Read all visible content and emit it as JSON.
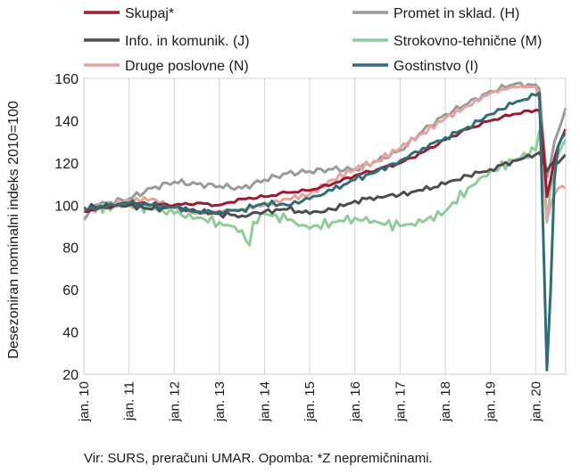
{
  "chart_data": {
    "type": "line",
    "title": "",
    "xlabel": "",
    "ylabel": "Desezoniran nominalni indeks 2010=100",
    "ylim": [
      20,
      160
    ],
    "yticks": [
      20,
      40,
      60,
      80,
      100,
      120,
      140,
      160
    ],
    "x_start": "2010-01",
    "x_end": "2020-09",
    "xtick_labels": [
      "jan. 10",
      "jan. 11",
      "jan. 12",
      "jan. 13",
      "jan. 14",
      "jan. 15",
      "jan. 16",
      "jan. 17",
      "jan. 18",
      "jan. 19",
      "jan. 20"
    ],
    "grid": "vertical",
    "legend_position": "top",
    "series": [
      {
        "name": "Skupaj*",
        "color": "#9b1b30",
        "width": 3,
        "anchors": [
          [
            "2010-01",
            97
          ],
          [
            "2011-01",
            101
          ],
          [
            "2012-01",
            100
          ],
          [
            "2012-07",
            101
          ],
          [
            "2013-01",
            100
          ],
          [
            "2013-07",
            103
          ],
          [
            "2014-01",
            104
          ],
          [
            "2014-07",
            106
          ],
          [
            "2015-01",
            107
          ],
          [
            "2015-07",
            110
          ],
          [
            "2016-01",
            114
          ],
          [
            "2016-07",
            117
          ],
          [
            "2017-01",
            120
          ],
          [
            "2017-07",
            125
          ],
          [
            "2018-01",
            131
          ],
          [
            "2018-07",
            136
          ],
          [
            "2019-01",
            140
          ],
          [
            "2019-07",
            143
          ],
          [
            "2020-01",
            145
          ],
          [
            "2020-02",
            145
          ],
          [
            "2020-03",
            128
          ],
          [
            "2020-04",
            104
          ],
          [
            "2020-05",
            112
          ],
          [
            "2020-06",
            122
          ],
          [
            "2020-07",
            128
          ],
          [
            "2020-08",
            132
          ],
          [
            "2020-09",
            136
          ]
        ]
      },
      {
        "name": "Promet in sklad. (H)",
        "color": "#9a9a9a",
        "width": 3,
        "anchors": [
          [
            "2010-01",
            93
          ],
          [
            "2010-04",
            100
          ],
          [
            "2011-01",
            103
          ],
          [
            "2011-07",
            108
          ],
          [
            "2012-01",
            111
          ],
          [
            "2012-07",
            110
          ],
          [
            "2013-01",
            109
          ],
          [
            "2013-07",
            108
          ],
          [
            "2014-01",
            112
          ],
          [
            "2014-07",
            115
          ],
          [
            "2015-01",
            116
          ],
          [
            "2015-07",
            117
          ],
          [
            "2016-01",
            117
          ],
          [
            "2016-07",
            121
          ],
          [
            "2017-01",
            126
          ],
          [
            "2017-07",
            135
          ],
          [
            "2018-01",
            143
          ],
          [
            "2018-07",
            148
          ],
          [
            "2019-01",
            154
          ],
          [
            "2019-07",
            157
          ],
          [
            "2020-01",
            157
          ],
          [
            "2020-02",
            155
          ],
          [
            "2020-03",
            132
          ],
          [
            "2020-04",
            113
          ],
          [
            "2020-05",
            120
          ],
          [
            "2020-06",
            130
          ],
          [
            "2020-07",
            135
          ],
          [
            "2020-08",
            140
          ],
          [
            "2020-09",
            146
          ]
        ]
      },
      {
        "name": "Info. in komunik. (J)",
        "color": "#4d4d4d",
        "width": 3,
        "anchors": [
          [
            "2010-01",
            99
          ],
          [
            "2011-01",
            100
          ],
          [
            "2011-07",
            98
          ],
          [
            "2012-01",
            99
          ],
          [
            "2012-07",
            97
          ],
          [
            "2013-01",
            96
          ],
          [
            "2013-07",
            95
          ],
          [
            "2014-01",
            97
          ],
          [
            "2014-07",
            98
          ],
          [
            "2015-01",
            96
          ],
          [
            "2015-07",
            98
          ],
          [
            "2016-01",
            102
          ],
          [
            "2016-07",
            104
          ],
          [
            "2017-01",
            105
          ],
          [
            "2017-07",
            107
          ],
          [
            "2018-01",
            110
          ],
          [
            "2018-07",
            114
          ],
          [
            "2019-01",
            117
          ],
          [
            "2019-07",
            121
          ],
          [
            "2020-01",
            124
          ],
          [
            "2020-02",
            125
          ],
          [
            "2020-03",
            121
          ],
          [
            "2020-04",
            116
          ],
          [
            "2020-05",
            119
          ],
          [
            "2020-06",
            121
          ],
          [
            "2020-07",
            120
          ],
          [
            "2020-08",
            122
          ],
          [
            "2020-09",
            124
          ]
        ]
      },
      {
        "name": "Strokovno-tehnične (M)",
        "color": "#8fcc9a",
        "width": 3,
        "anchors": [
          [
            "2010-01",
            98
          ],
          [
            "2011-01",
            100
          ],
          [
            "2011-07",
            98
          ],
          [
            "2012-01",
            96
          ],
          [
            "2012-07",
            94
          ],
          [
            "2013-01",
            92
          ],
          [
            "2013-07",
            88
          ],
          [
            "2013-09",
            81
          ],
          [
            "2013-10",
            92
          ],
          [
            "2014-01",
            96
          ],
          [
            "2014-07",
            93
          ],
          [
            "2015-01",
            89
          ],
          [
            "2015-07",
            92
          ],
          [
            "2016-01",
            94
          ],
          [
            "2016-07",
            92
          ],
          [
            "2017-01",
            90
          ],
          [
            "2017-07",
            92
          ],
          [
            "2018-01",
            97
          ],
          [
            "2018-07",
            108
          ],
          [
            "2019-01",
            116
          ],
          [
            "2019-07",
            121
          ],
          [
            "2020-01",
            126
          ],
          [
            "2020-02",
            135
          ],
          [
            "2020-03",
            120
          ],
          [
            "2020-04",
            92
          ],
          [
            "2020-05",
            108
          ],
          [
            "2020-06",
            120
          ],
          [
            "2020-07",
            124
          ],
          [
            "2020-08",
            128
          ],
          [
            "2020-09",
            131
          ]
        ]
      },
      {
        "name": "Druge poslovne (N)",
        "color": "#e6a3a3",
        "width": 3,
        "anchors": [
          [
            "2010-01",
            97
          ],
          [
            "2011-01",
            102
          ],
          [
            "2011-07",
            103
          ],
          [
            "2012-01",
            99
          ],
          [
            "2012-07",
            96
          ],
          [
            "2013-01",
            97
          ],
          [
            "2013-07",
            98
          ],
          [
            "2014-01",
            100
          ],
          [
            "2014-07",
            103
          ],
          [
            "2015-01",
            105
          ],
          [
            "2015-07",
            112
          ],
          [
            "2016-01",
            117
          ],
          [
            "2016-07",
            121
          ],
          [
            "2017-01",
            127
          ],
          [
            "2017-07",
            134
          ],
          [
            "2018-01",
            141
          ],
          [
            "2018-07",
            147
          ],
          [
            "2019-01",
            153
          ],
          [
            "2019-07",
            156
          ],
          [
            "2020-01",
            156
          ],
          [
            "2020-02",
            150
          ],
          [
            "2020-03",
            117
          ],
          [
            "2020-04",
            93
          ],
          [
            "2020-05",
            100
          ],
          [
            "2020-06",
            105
          ],
          [
            "2020-07",
            108
          ],
          [
            "2020-08",
            109
          ],
          [
            "2020-09",
            108
          ]
        ]
      },
      {
        "name": "Gostinstvo (I)",
        "color": "#2f6e72",
        "width": 3,
        "anchors": [
          [
            "2010-01",
            98
          ],
          [
            "2011-01",
            101
          ],
          [
            "2011-07",
            100
          ],
          [
            "2012-01",
            99
          ],
          [
            "2012-07",
            97
          ],
          [
            "2013-01",
            97
          ],
          [
            "2013-07",
            98
          ],
          [
            "2014-01",
            101
          ],
          [
            "2014-07",
            100
          ],
          [
            "2015-01",
            103
          ],
          [
            "2015-07",
            107
          ],
          [
            "2016-01",
            112
          ],
          [
            "2016-07",
            116
          ],
          [
            "2017-01",
            121
          ],
          [
            "2017-07",
            127
          ],
          [
            "2018-01",
            132
          ],
          [
            "2018-07",
            137
          ],
          [
            "2019-01",
            143
          ],
          [
            "2019-07",
            148
          ],
          [
            "2020-01",
            152
          ],
          [
            "2020-02",
            153
          ],
          [
            "2020-03",
            88
          ],
          [
            "2020-04",
            22
          ],
          [
            "2020-05",
            60
          ],
          [
            "2020-06",
            112
          ],
          [
            "2020-07",
            128
          ],
          [
            "2020-08",
            132
          ],
          [
            "2020-09",
            134
          ]
        ]
      }
    ]
  },
  "source_note": "Vir: SURS, preračuni UMAR. Opomba: *Z nepremičninami."
}
